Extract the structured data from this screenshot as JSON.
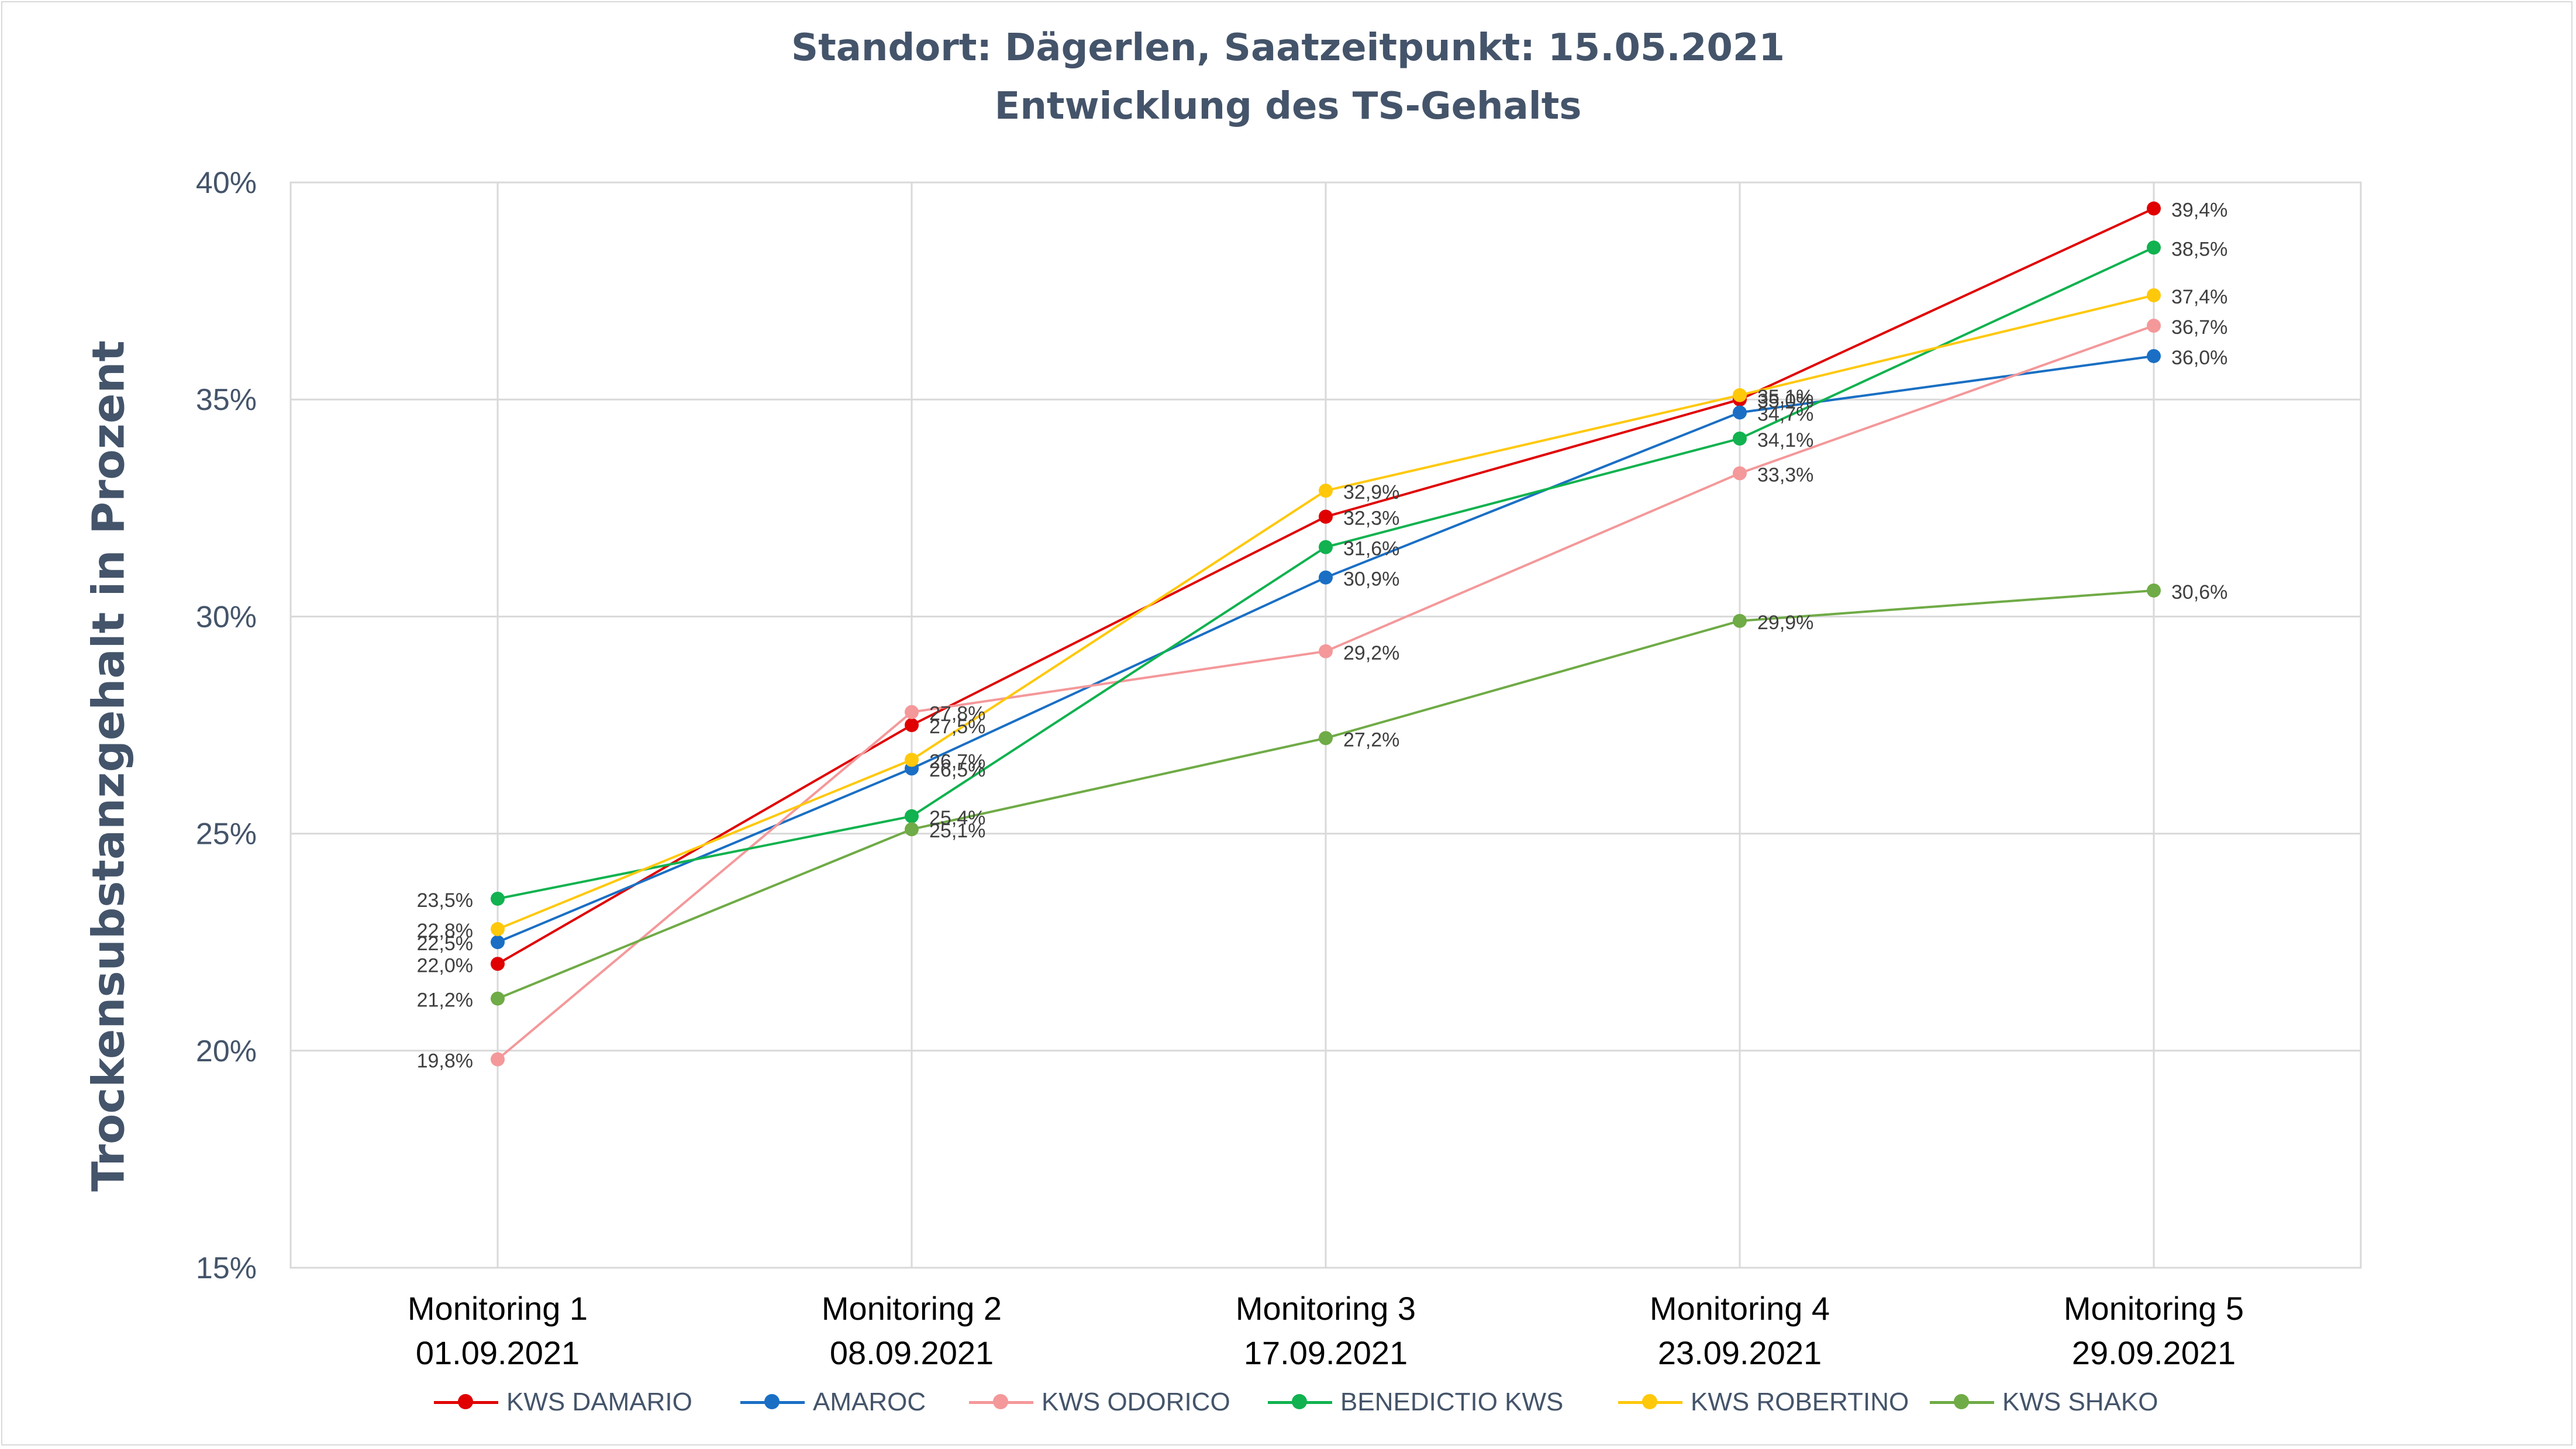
{
  "chart_data": {
    "type": "line",
    "title": "Standort: Dägerlen, Saatzeitpunkt: 15.05.2021",
    "subtitle": "Entwicklung des TS-Gehalts",
    "ylabel": "Trockensubstanzgehalt in Prozent",
    "xlabel": "",
    "ylim": [
      15,
      40
    ],
    "y_ticks": [
      "15%",
      "20%",
      "25%",
      "30%",
      "35%",
      "40%"
    ],
    "y_tick_values": [
      15,
      20,
      25,
      30,
      35,
      40
    ],
    "categories": [
      {
        "line1": "Monitoring 1",
        "line2": "01.09.2021"
      },
      {
        "line1": "Monitoring 2",
        "line2": "08.09.2021"
      },
      {
        "line1": "Monitoring 3",
        "line2": "17.09.2021"
      },
      {
        "line1": "Monitoring 4",
        "line2": "23.09.2021"
      },
      {
        "line1": "Monitoring 5",
        "line2": "29.09.2021"
      }
    ],
    "grid": true,
    "legend_position": "bottom",
    "series": [
      {
        "name": "KWS DAMARIO",
        "color": "#e00000",
        "values": [
          22.0,
          27.5,
          32.3,
          35.0,
          39.4
        ],
        "labels": [
          "22,0%",
          "27,5%",
          "32,3%",
          "35,0%",
          "39,4%"
        ]
      },
      {
        "name": "AMAROC",
        "color": "#1a6fc4",
        "values": [
          22.5,
          26.5,
          30.9,
          34.7,
          36.0
        ],
        "labels": [
          "22,5%",
          "26,5%",
          "30,9%",
          "34,7%",
          "36,0%"
        ]
      },
      {
        "name": "KWS ODORICO",
        "color": "#f4989a",
        "values": [
          19.8,
          27.8,
          29.2,
          33.3,
          36.7
        ],
        "labels": [
          "19,8%",
          "27,8%",
          "29,2%",
          "33,3%",
          "36,7%"
        ]
      },
      {
        "name": "BENEDICTIO KWS",
        "color": "#11b24f",
        "values": [
          23.5,
          25.4,
          31.6,
          34.1,
          38.5
        ],
        "labels": [
          "23,5%",
          "25,4%",
          "31,6%",
          "34,1%",
          "38,5%"
        ]
      },
      {
        "name": "KWS ROBERTINO",
        "color": "#ffc80a",
        "values": [
          22.8,
          26.7,
          32.9,
          35.1,
          37.4
        ],
        "labels": [
          "22,8%",
          "26,7%",
          "32,9%",
          "35,1%",
          "37,4%"
        ]
      },
      {
        "name": "KWS SHAKO",
        "color": "#6fab46",
        "values": [
          21.2,
          25.1,
          27.2,
          29.9,
          30.6
        ],
        "labels": [
          "21,2%",
          "25,1%",
          "27,2%",
          "29,9%",
          "30,6%"
        ]
      }
    ]
  }
}
